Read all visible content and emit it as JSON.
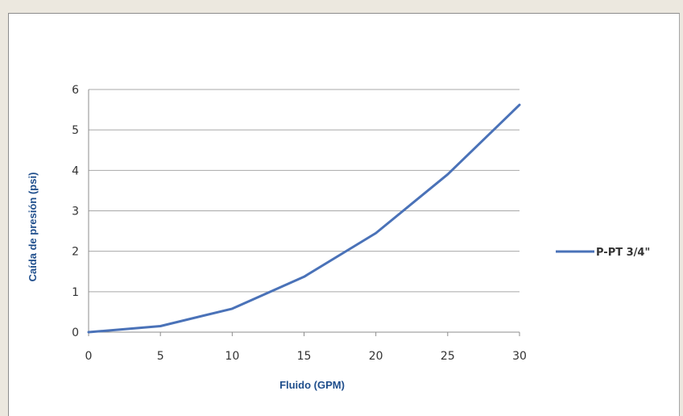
{
  "chart_data": {
    "type": "line",
    "title": "",
    "xlabel": "Fluido (GPM)",
    "ylabel": "Caída de presión (psi)",
    "xlim": [
      0,
      30
    ],
    "ylim": [
      0,
      6
    ],
    "x_ticks": [
      0,
      5,
      10,
      15,
      20,
      25,
      30
    ],
    "y_ticks": [
      0,
      1,
      2,
      3,
      4,
      5,
      6
    ],
    "grid": "horizontal",
    "legend_position": "right",
    "series": [
      {
        "name": "P-PT 3/4\"",
        "color": "#4a72b8",
        "points": [
          {
            "x": 0,
            "y": 0
          },
          {
            "x": 5,
            "y": 0.15
          },
          {
            "x": 10,
            "y": 0.58
          },
          {
            "x": 15,
            "y": 1.37
          },
          {
            "x": 20,
            "y": 2.45
          },
          {
            "x": 25,
            "y": 3.9
          },
          {
            "x": 30,
            "y": 5.62
          }
        ]
      }
    ]
  }
}
